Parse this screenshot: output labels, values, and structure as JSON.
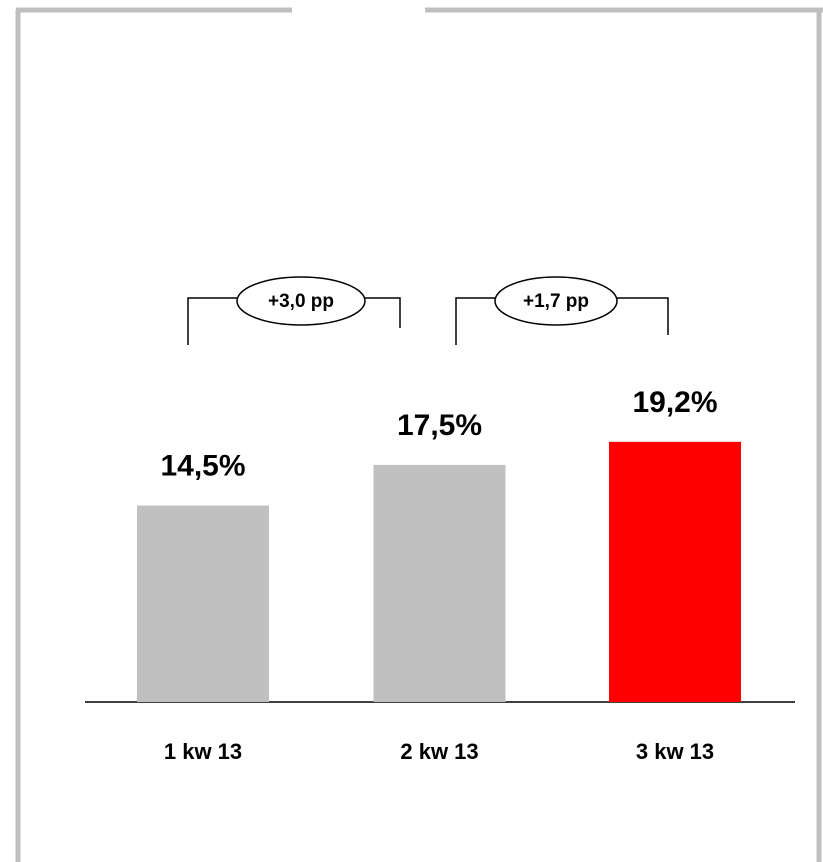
{
  "chart_data": {
    "type": "bar",
    "categories": [
      "1 kw 13",
      "2 kw 13",
      "3 kw 13"
    ],
    "values": [
      14.5,
      17.5,
      19.2
    ],
    "value_labels": [
      "14,5%",
      "17,5%",
      "19,2%"
    ],
    "colors": [
      "#c0c0c0",
      "#c0c0c0",
      "#ff0000"
    ],
    "ylim": [
      0,
      50
    ],
    "annotations": [
      "+3,0 pp",
      "+1,7 pp"
    ]
  }
}
